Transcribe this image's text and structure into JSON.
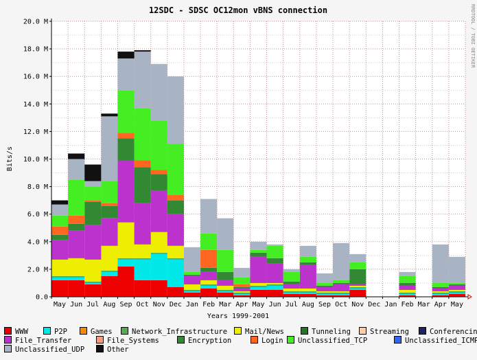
{
  "chart_data": {
    "type": "bar",
    "stacked": true,
    "title": "12SDC - SDSC OC12mon vBNS connection",
    "xlabel": "Years 1999-2001",
    "ylabel": "Bits/s",
    "ylim": [
      0,
      20
    ],
    "yunit": "M",
    "yticks": [
      "0.0",
      "2.0 M",
      "4.0 M",
      "6.0 M",
      "8.0 M",
      "10.0 M",
      "12.0 M",
      "14.0 M",
      "16.0 M",
      "18.0 M",
      "20.0 M"
    ],
    "side_label": "RRDTOOL / TOBI OETIKER",
    "grid": true,
    "legend_position": "bottom",
    "categories": [
      "May",
      "Jun",
      "Jul",
      "Aug",
      "Sep",
      "Oct",
      "Nov",
      "Dec",
      "Jan",
      "Feb",
      "Mar",
      "Apr",
      "May",
      "Jun",
      "Jul",
      "Aug",
      "Sep",
      "Oct",
      "Nov",
      "Dec",
      "Jan",
      "Feb",
      "Mar",
      "Apr",
      "May"
    ],
    "series": [
      {
        "name": "WWW",
        "color": "#ee0000",
        "values": [
          1.2,
          1.2,
          0.9,
          1.5,
          2.2,
          1.2,
          1.2,
          0.7,
          0.3,
          0.6,
          0.3,
          0.1,
          0.5,
          0.5,
          0.2,
          0.2,
          0.1,
          0.1,
          0.5,
          0,
          0,
          0.1,
          0,
          0.1,
          0.2
        ]
      },
      {
        "name": "P2P",
        "color": "#00e8e8",
        "values": [
          0.2,
          0.2,
          0.1,
          0.3,
          0.5,
          1.5,
          1.9,
          2.0,
          0.1,
          0.2,
          0.1,
          0.1,
          0.2,
          0.3,
          0.1,
          0.1,
          0.1,
          0.1,
          0.1,
          0,
          0,
          0.1,
          0,
          0.1,
          0.1
        ]
      },
      {
        "name": "Games",
        "color": "#ff8800",
        "values": [
          0,
          0,
          0,
          0,
          0,
          0,
          0,
          0,
          0,
          0,
          0,
          0,
          0,
          0,
          0,
          0,
          0,
          0,
          0,
          0,
          0,
          0,
          0,
          0,
          0
        ]
      },
      {
        "name": "Network_Infrastructure",
        "color": "#55aa55",
        "values": [
          0.1,
          0.1,
          0.1,
          0.1,
          0.1,
          0.1,
          0.1,
          0.1,
          0.1,
          0.1,
          0.1,
          0.1,
          0.1,
          0.1,
          0.1,
          0.1,
          0.1,
          0.1,
          0.1,
          0,
          0,
          0.1,
          0,
          0.1,
          0.1
        ]
      },
      {
        "name": "Mail/News",
        "color": "#eeee00",
        "values": [
          1.2,
          1.3,
          1.6,
          1.8,
          2.6,
          1.0,
          1.5,
          0.9,
          0.4,
          0.3,
          0.3,
          0.1,
          0.2,
          0.1,
          0.2,
          0.2,
          0.1,
          0.1,
          0.1,
          0,
          0,
          0.2,
          0,
          0.1,
          0.1
        ]
      },
      {
        "name": "Tunneling",
        "color": "#227722",
        "values": [
          0,
          0,
          0,
          0,
          0,
          0,
          0,
          0,
          0,
          0,
          0,
          0,
          0,
          0,
          0,
          0,
          0,
          0,
          0,
          0,
          0,
          0,
          0,
          0,
          0
        ]
      },
      {
        "name": "Streaming",
        "color": "#ffccaa",
        "values": [
          0,
          0,
          0,
          0,
          0,
          0,
          0,
          0,
          0,
          0,
          0,
          0,
          0,
          0,
          0,
          0,
          0,
          0,
          0,
          0,
          0,
          0,
          0,
          0,
          0
        ]
      },
      {
        "name": "Conferencing",
        "color": "#222266",
        "values": [
          0,
          0,
          0,
          0,
          0,
          0,
          0,
          0,
          0,
          0,
          0,
          0,
          0,
          0,
          0,
          0,
          0,
          0,
          0,
          0,
          0,
          0,
          0,
          0,
          0
        ]
      },
      {
        "name": "File_Transfer",
        "color": "#bb33cc",
        "values": [
          1.4,
          2.0,
          2.5,
          2.0,
          4.5,
          3.0,
          3.0,
          2.3,
          0.6,
          0.6,
          0.4,
          0.2,
          1.9,
          1.4,
          0.3,
          1.7,
          0.3,
          0.5,
          0.1,
          0,
          0,
          0.3,
          0,
          0.2,
          0.3
        ]
      },
      {
        "name": "File_Systems",
        "color": "#ff9977",
        "values": [
          0,
          0,
          0,
          0,
          0,
          0,
          0,
          0,
          0,
          0,
          0,
          0,
          0,
          0,
          0,
          0,
          0,
          0,
          0,
          0,
          0,
          0,
          0,
          0,
          0
        ]
      },
      {
        "name": "Encryption",
        "color": "#338833",
        "values": [
          0.4,
          0.5,
          1.7,
          0.9,
          1.6,
          2.6,
          1.2,
          1.0,
          0.1,
          0.3,
          0.6,
          0.1,
          0.3,
          0.4,
          0.2,
          0.2,
          0.1,
          0.1,
          1.1,
          0,
          0,
          0.2,
          0,
          0.1,
          0.1
        ]
      },
      {
        "name": "Login",
        "color": "#ff6622",
        "values": [
          0.6,
          0.6,
          0.1,
          0.2,
          0.4,
          0.5,
          0.3,
          0.4,
          0,
          1.3,
          0,
          0.2,
          0,
          0,
          0,
          0,
          0,
          0,
          0,
          0,
          0,
          0,
          0,
          0,
          0
        ]
      },
      {
        "name": "Unclassified_TCP",
        "color": "#44ee22",
        "values": [
          0.8,
          2.6,
          1.0,
          1.6,
          3.1,
          3.8,
          3.6,
          3.7,
          0.2,
          1.2,
          1.6,
          0.5,
          0.2,
          0.9,
          0.7,
          0.4,
          0.2,
          0.2,
          0.5,
          0,
          0,
          0.5,
          0,
          0.3,
          0.1
        ]
      },
      {
        "name": "Unclassified_ICMP",
        "color": "#3366ee",
        "values": [
          0,
          0,
          0,
          0,
          0,
          0,
          0,
          0,
          0,
          0,
          0,
          0,
          0,
          0,
          0,
          0,
          0,
          0,
          0,
          0,
          0,
          0,
          0,
          0,
          0
        ]
      },
      {
        "name": "Unclassified_UDP",
        "color": "#a8b4c4",
        "values": [
          0.8,
          1.5,
          0.4,
          4.7,
          2.3,
          4.1,
          4.1,
          4.9,
          1.8,
          2.5,
          2.3,
          0.7,
          0.6,
          0.1,
          0.2,
          0.8,
          0.7,
          2.7,
          0.6,
          0,
          0,
          0.3,
          0,
          2.8,
          1.9
        ]
      },
      {
        "name": "Other",
        "color": "#111111",
        "values": [
          0.3,
          0.4,
          1.2,
          0.2,
          0.5,
          0.1,
          0,
          0,
          0,
          0,
          0,
          0,
          0,
          0,
          0,
          0,
          0,
          0,
          0,
          0,
          0,
          0,
          0,
          0,
          0
        ]
      }
    ]
  }
}
